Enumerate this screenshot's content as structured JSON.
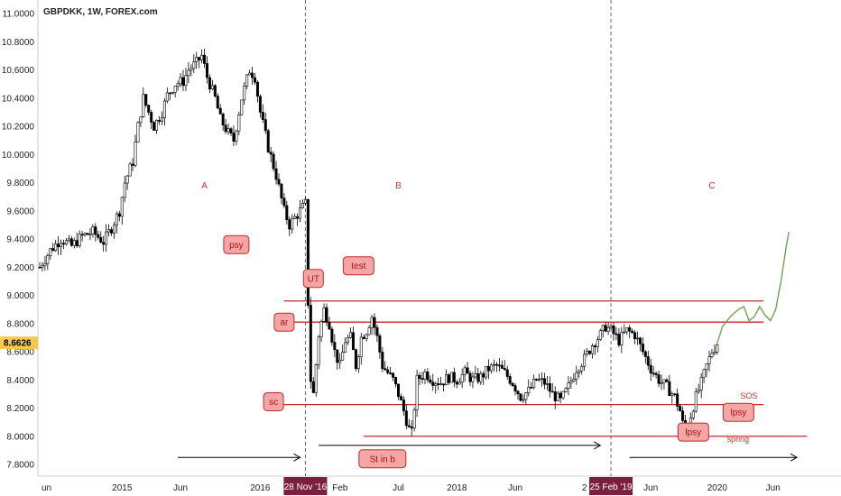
{
  "chart_data": {
    "type": "candlestick",
    "title": "GBPDKK, 1W, FOREX.com",
    "last_price": "8.6626",
    "y_ticks": [
      "11.0000",
      "10.8000",
      "10.6000",
      "10.4000",
      "10.2000",
      "10.0000",
      "9.8000",
      "9.6000",
      "9.4000",
      "9.2000",
      "9.0000",
      "8.8000",
      "8.6000",
      "8.4000",
      "8.2000",
      "8.0000",
      "7.8000"
    ],
    "ylim": [
      7.75,
      11.05
    ],
    "x_ticks": [
      {
        "label": "un",
        "t": 0
      },
      {
        "label": "2015",
        "t": 31
      },
      {
        "label": "Jun",
        "t": 53
      },
      {
        "label": "2016",
        "t": 83
      },
      {
        "label": "Feb",
        "t": 113
      },
      {
        "label": "Jul",
        "t": 135
      },
      {
        "label": "2018",
        "t": 157
      },
      {
        "label": "Jun",
        "t": 179
      },
      {
        "label": "2",
        "t": 205
      },
      {
        "label": "Jun",
        "t": 230
      },
      {
        "label": "2020",
        "t": 255
      },
      {
        "label": "Jun",
        "t": 276
      }
    ],
    "date_flags": [
      {
        "label": "28 Nov '16",
        "t": 100
      },
      {
        "label": "25 Feb '19",
        "t": 215
      }
    ],
    "price_path": [
      [
        0,
        9.2
      ],
      [
        4,
        9.32
      ],
      [
        8,
        9.4
      ],
      [
        12,
        9.35
      ],
      [
        16,
        9.42
      ],
      [
        20,
        9.45
      ],
      [
        24,
        9.38
      ],
      [
        27,
        9.48
      ],
      [
        30,
        9.6
      ],
      [
        32,
        9.8
      ],
      [
        35,
        9.95
      ],
      [
        37,
        10.2
      ],
      [
        39,
        10.4
      ],
      [
        41,
        10.3
      ],
      [
        43,
        10.2
      ],
      [
        46,
        10.3
      ],
      [
        48,
        10.42
      ],
      [
        51,
        10.5
      ],
      [
        54,
        10.52
      ],
      [
        56,
        10.6
      ],
      [
        59,
        10.65
      ],
      [
        61,
        10.7
      ],
      [
        63,
        10.55
      ],
      [
        66,
        10.4
      ],
      [
        68,
        10.25
      ],
      [
        71,
        10.15
      ],
      [
        73,
        10.1
      ],
      [
        76,
        10.4
      ],
      [
        79,
        10.6
      ],
      [
        81,
        10.55
      ],
      [
        83,
        10.3
      ],
      [
        86,
        10.05
      ],
      [
        89,
        9.85
      ],
      [
        92,
        9.6
      ],
      [
        94,
        9.5
      ],
      [
        96,
        9.55
      ],
      [
        98,
        9.6
      ],
      [
        100,
        9.65
      ],
      [
        101,
        8.95
      ],
      [
        102,
        8.4
      ],
      [
        103,
        8.3
      ],
      [
        105,
        8.72
      ],
      [
        107,
        8.9
      ],
      [
        109,
        8.8
      ],
      [
        111,
        8.6
      ],
      [
        113,
        8.5
      ],
      [
        115,
        8.68
      ],
      [
        117,
        8.7
      ],
      [
        119,
        8.5
      ],
      [
        121,
        8.7
      ],
      [
        123,
        8.75
      ],
      [
        125,
        8.85
      ],
      [
        127,
        8.7
      ],
      [
        129,
        8.5
      ],
      [
        131,
        8.45
      ],
      [
        133,
        8.4
      ],
      [
        135,
        8.3
      ],
      [
        137,
        8.18
      ],
      [
        139,
        8.05
      ],
      [
        140,
        8.02
      ],
      [
        142,
        8.4
      ],
      [
        145,
        8.45
      ],
      [
        148,
        8.4
      ],
      [
        151,
        8.38
      ],
      [
        154,
        8.42
      ],
      [
        157,
        8.4
      ],
      [
        160,
        8.45
      ],
      [
        163,
        8.4
      ],
      [
        166,
        8.42
      ],
      [
        169,
        8.48
      ],
      [
        172,
        8.5
      ],
      [
        175,
        8.45
      ],
      [
        178,
        8.38
      ],
      [
        181,
        8.28
      ],
      [
        184,
        8.32
      ],
      [
        187,
        8.4
      ],
      [
        190,
        8.38
      ],
      [
        193,
        8.3
      ],
      [
        196,
        8.25
      ],
      [
        199,
        8.35
      ],
      [
        202,
        8.48
      ],
      [
        205,
        8.55
      ],
      [
        208,
        8.65
      ],
      [
        211,
        8.72
      ],
      [
        213,
        8.78
      ],
      [
        215,
        8.75
      ],
      [
        218,
        8.68
      ],
      [
        221,
        8.75
      ],
      [
        224,
        8.72
      ],
      [
        227,
        8.6
      ],
      [
        230,
        8.48
      ],
      [
        233,
        8.4
      ],
      [
        236,
        8.35
      ],
      [
        239,
        8.28
      ],
      [
        241,
        8.18
      ],
      [
        243,
        8.0
      ],
      [
        245,
        8.15
      ],
      [
        247,
        8.28
      ],
      [
        249,
        8.38
      ],
      [
        251,
        8.5
      ],
      [
        253,
        8.6
      ],
      [
        255,
        8.66
      ]
    ],
    "forecast": [
      [
        255,
        8.66
      ],
      [
        257,
        8.78
      ],
      [
        260,
        8.85
      ],
      [
        263,
        8.9
      ],
      [
        265,
        8.92
      ],
      [
        267,
        8.82
      ],
      [
        269,
        8.85
      ],
      [
        271,
        8.92
      ],
      [
        273,
        8.86
      ],
      [
        275,
        8.82
      ],
      [
        277,
        8.9
      ],
      [
        279,
        9.1
      ],
      [
        281,
        9.35
      ],
      [
        282,
        9.45
      ]
    ],
    "x_time_range": [
      0,
      288
    ],
    "horizontal_levels": [
      {
        "value": 8.96,
        "t_start": 92
      },
      {
        "value": 8.81,
        "t_start": 89
      },
      {
        "value": 8.225,
        "t_start": 91
      },
      {
        "value": 8.0,
        "t_start": 122,
        "t_end_extended": true
      }
    ],
    "vertical_markers": [
      100,
      215
    ],
    "wave_labels": [
      {
        "label": "A",
        "t": 62,
        "price": 9.76
      },
      {
        "label": "B",
        "t": 135,
        "price": 9.76
      },
      {
        "label": "C",
        "t": 253,
        "price": 9.76
      }
    ],
    "annotations": [
      {
        "label": "psy",
        "t": 74,
        "price": 9.36
      },
      {
        "label": "UT",
        "t": 103,
        "price": 9.12
      },
      {
        "label": "test",
        "t": 120,
        "price": 9.21
      },
      {
        "label": "ar",
        "t": 92,
        "price": 8.81
      },
      {
        "label": "sc",
        "t": 88,
        "price": 8.245
      },
      {
        "label": "St in b",
        "t": 129,
        "price": 7.84
      },
      {
        "label": "lpsy",
        "t": 246,
        "price": 8.03
      },
      {
        "label": "lpsy",
        "t": 263,
        "price": 8.17
      }
    ],
    "point_labels": [
      {
        "label": "SOS",
        "t": 263,
        "price": 8.285
      },
      {
        "label": "spring",
        "t": 258,
        "price": 7.98
      }
    ],
    "arrows": [
      {
        "t1": 52,
        "t2": 98,
        "price": 7.85
      },
      {
        "t1": 105,
        "t2": 211,
        "price": 7.935
      },
      {
        "t1": 222,
        "t2": 285,
        "price": 7.85
      }
    ]
  }
}
